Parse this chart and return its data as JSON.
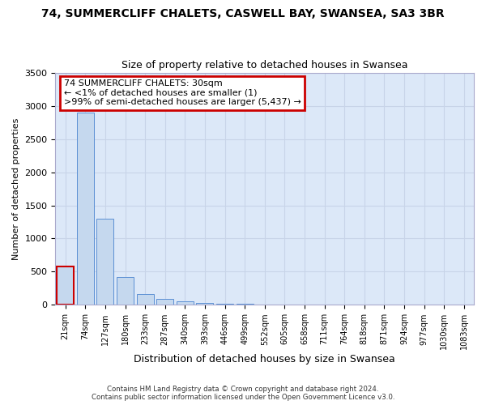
{
  "title1": "74, SUMMERCLIFF CHALETS, CASWELL BAY, SWANSEA, SA3 3BR",
  "title2": "Size of property relative to detached houses in Swansea",
  "xlabel": "Distribution of detached houses by size in Swansea",
  "ylabel": "Number of detached properties",
  "bar_labels": [
    "21sqm",
    "74sqm",
    "127sqm",
    "180sqm",
    "233sqm",
    "287sqm",
    "340sqm",
    "393sqm",
    "446sqm",
    "499sqm",
    "552sqm",
    "605sqm",
    "658sqm",
    "711sqm",
    "764sqm",
    "818sqm",
    "871sqm",
    "924sqm",
    "977sqm",
    "1030sqm",
    "1083sqm"
  ],
  "bar_values": [
    580,
    2900,
    1300,
    420,
    160,
    90,
    55,
    30,
    20,
    20,
    0,
    0,
    0,
    0,
    0,
    0,
    0,
    0,
    0,
    0,
    0
  ],
  "bar_color": "#c5d8ee",
  "bar_edge_color": "#5b8fd4",
  "highlight_bar_index": 0,
  "highlight_bar_edge_color": "#cc0000",
  "annotation_lines": [
    "74 SUMMERCLIFF CHALETS: 30sqm",
    "← <1% of detached houses are smaller (1)",
    ">99% of semi-detached houses are larger (5,437) →"
  ],
  "annotation_box_color": "#ffffff",
  "annotation_box_edge_color": "#cc0000",
  "ylim": [
    0,
    3500
  ],
  "yticks": [
    0,
    500,
    1000,
    1500,
    2000,
    2500,
    3000,
    3500
  ],
  "grid_color": "#c8d4e8",
  "bg_color": "#dce8f8",
  "fig_color": "#ffffff",
  "footer_line1": "Contains HM Land Registry data © Crown copyright and database right 2024.",
  "footer_line2": "Contains public sector information licensed under the Open Government Licence v3.0."
}
